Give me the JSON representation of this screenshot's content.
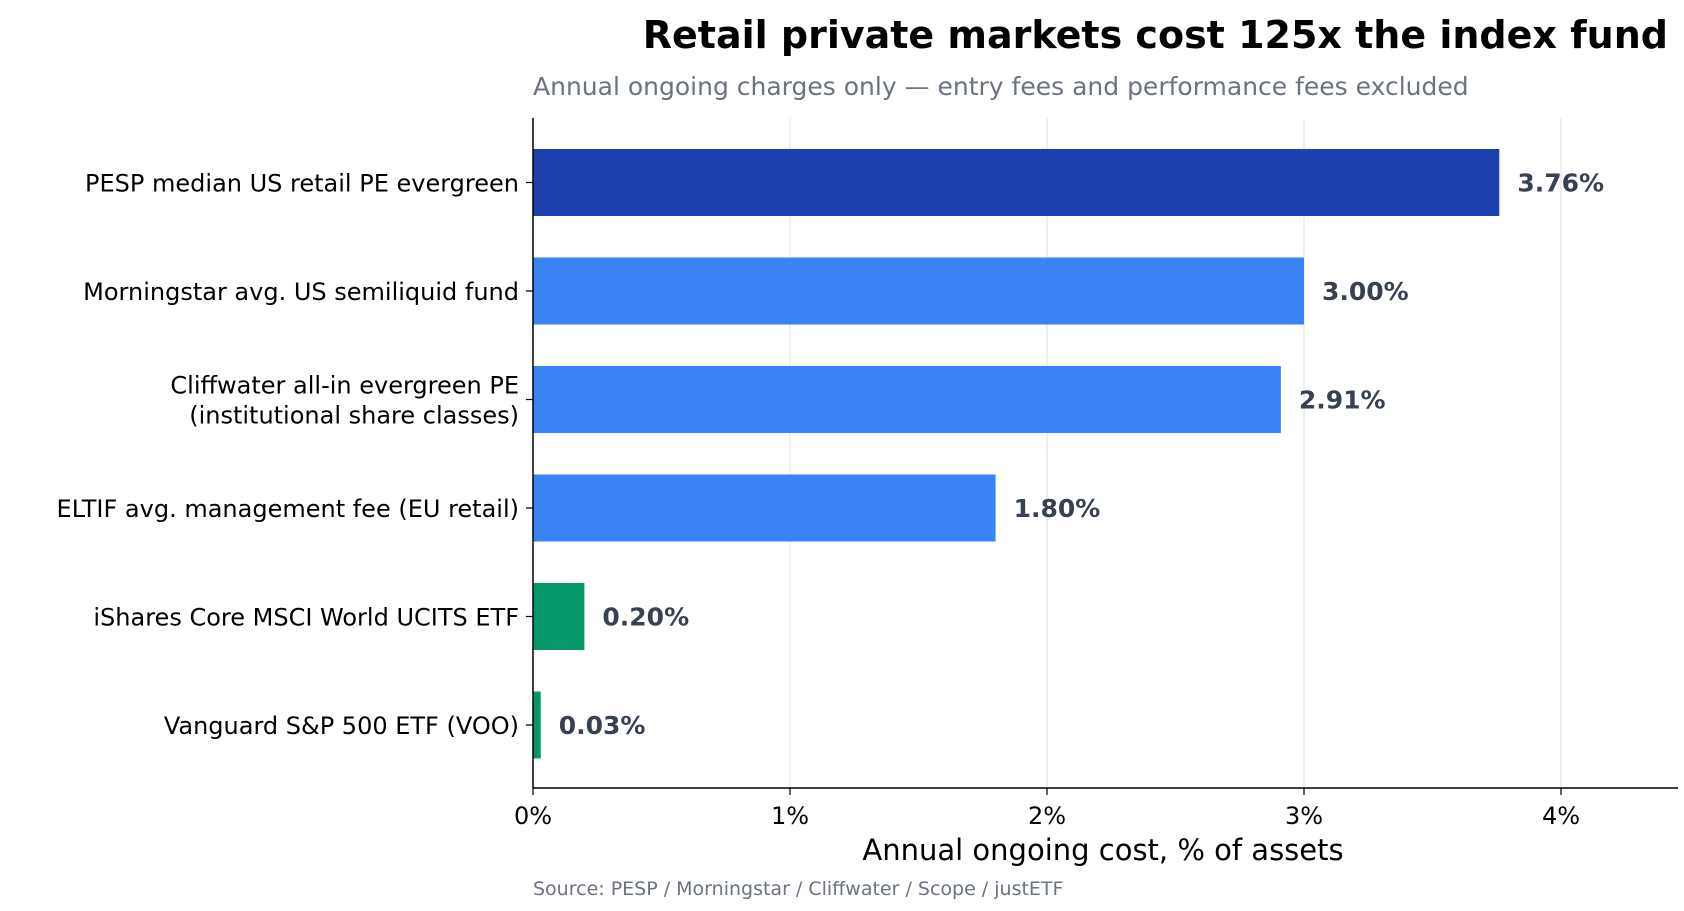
{
  "chart_data": {
    "type": "bar",
    "orientation": "horizontal",
    "title": "Retail private markets cost 125x the index fund",
    "subtitle": "Annual ongoing charges only — entry fees and performance fees excluded",
    "xlabel": "Annual ongoing cost, % of assets",
    "source": "Source: PESP / Morningstar / Cliffwater / Scope / justETF",
    "xlim": [
      0,
      4.45
    ],
    "xticks": [
      0,
      1,
      2,
      3,
      4
    ],
    "xtick_labels": [
      "0%",
      "1%",
      "2%",
      "3%",
      "4%"
    ],
    "grid": "vertical",
    "legend": "none",
    "categories": [
      [
        "PESP median US retail PE evergreen"
      ],
      [
        "Morningstar avg. US semiliquid fund"
      ],
      [
        "Cliffwater all-in evergreen PE",
        "(institutional share classes)"
      ],
      [
        "ELTIF avg. management fee (EU retail)"
      ],
      [
        "iShares Core MSCI World UCITS ETF"
      ],
      [
        "Vanguard S&P 500 ETF (VOO)"
      ]
    ],
    "values": [
      3.76,
      3.0,
      2.91,
      1.8,
      0.2,
      0.03
    ],
    "value_labels": [
      "3.76%",
      "3.00%",
      "2.91%",
      "1.80%",
      "0.20%",
      "0.03%"
    ],
    "colors": [
      "#1e40af",
      "#3b82f6",
      "#3b82f6",
      "#3b82f6",
      "#059669",
      "#059669"
    ]
  }
}
